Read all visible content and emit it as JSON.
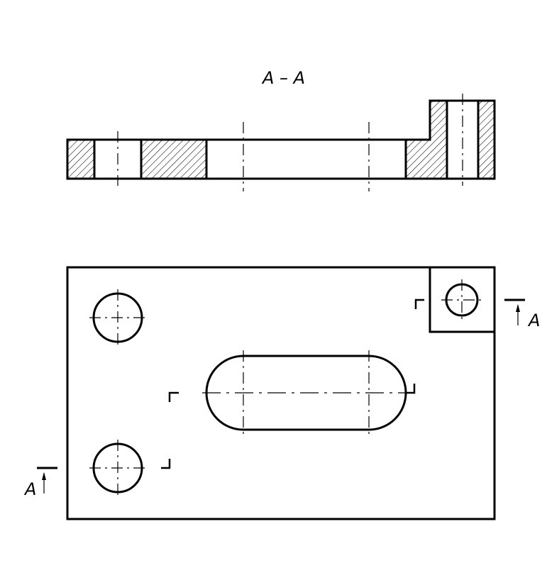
{
  "section_title": "A – A",
  "cut_label_right": "A",
  "cut_label_left": "A"
}
